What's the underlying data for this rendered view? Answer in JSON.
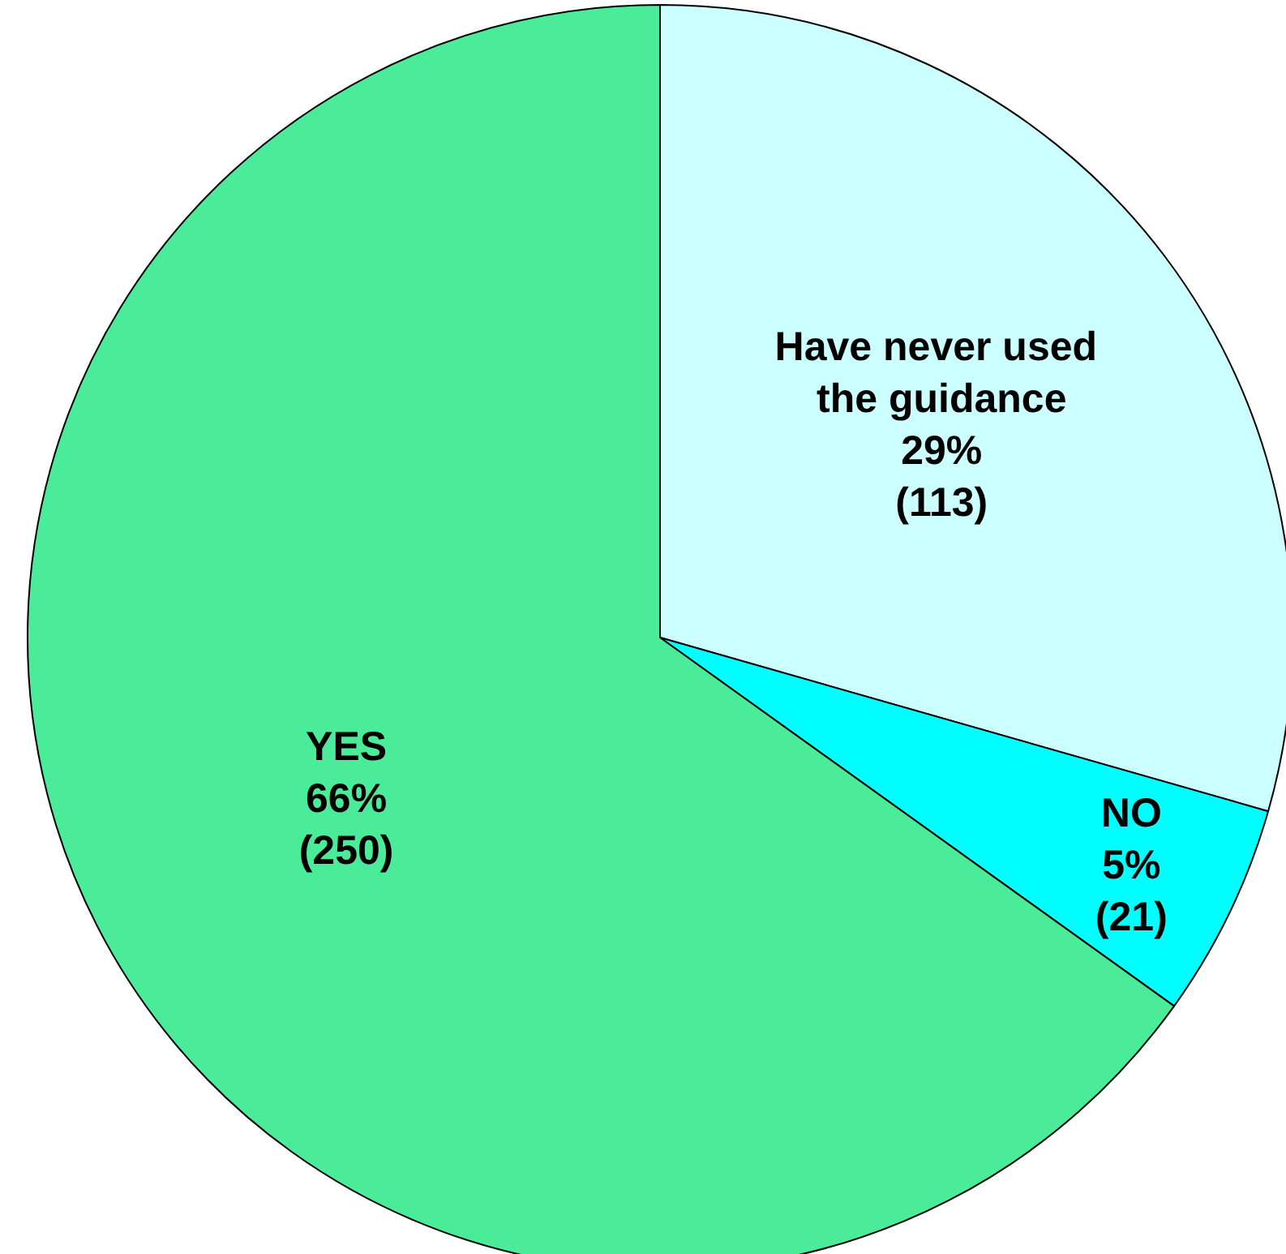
{
  "chart_data": {
    "type": "pie",
    "categories": [
      "Have never used the guidance",
      "NO",
      "YES"
    ],
    "values": [
      113,
      21,
      250
    ],
    "colors": [
      "#ccffff",
      "#00ffff",
      "#4aec9a"
    ],
    "value_labels": [
      "29%\n(113)",
      "5%\n(21)",
      "66%\n(250)"
    ],
    "legend": false
  }
}
